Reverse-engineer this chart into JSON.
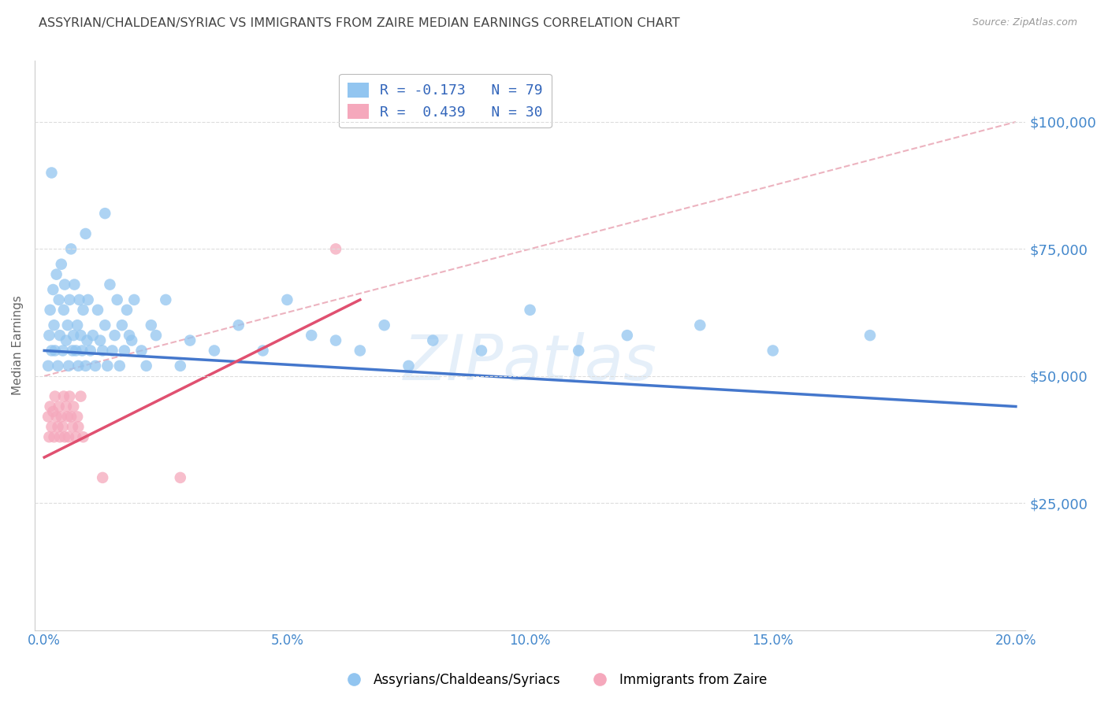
{
  "title": "ASSYRIAN/CHALDEAN/SYRIAC VS IMMIGRANTS FROM ZAIRE MEDIAN EARNINGS CORRELATION CHART",
  "source": "Source: ZipAtlas.com",
  "xlabel_pct": [
    "0.0%",
    "5.0%",
    "10.0%",
    "15.0%",
    "20.0%"
  ],
  "xlabel_vals": [
    0.0,
    0.05,
    0.1,
    0.15,
    0.2
  ],
  "ylabel": "Median Earnings",
  "ylabel_labels": [
    "$25,000",
    "$50,000",
    "$75,000",
    "$100,000"
  ],
  "ylabel_vals": [
    25000,
    50000,
    75000,
    100000
  ],
  "ylim": [
    0,
    112000
  ],
  "xlim": [
    -0.002,
    0.202
  ],
  "legend_blue_R": "R = -0.173",
  "legend_blue_N": "N = 79",
  "legend_pink_R": "R =  0.439",
  "legend_pink_N": "N = 30",
  "blue_color": "#92C5F0",
  "pink_color": "#F5A8BC",
  "line_blue": "#4477CC",
  "line_pink": "#E05070",
  "dashed_line_color": "#E8A0B0",
  "watermark": "ZIPatlas",
  "blue_scatter": [
    [
      0.0008,
      52000
    ],
    [
      0.001,
      58000
    ],
    [
      0.0012,
      63000
    ],
    [
      0.0015,
      55000
    ],
    [
      0.0018,
      67000
    ],
    [
      0.002,
      60000
    ],
    [
      0.0022,
      55000
    ],
    [
      0.0025,
      70000
    ],
    [
      0.0028,
      52000
    ],
    [
      0.003,
      65000
    ],
    [
      0.0032,
      58000
    ],
    [
      0.0035,
      72000
    ],
    [
      0.0038,
      55000
    ],
    [
      0.004,
      63000
    ],
    [
      0.0042,
      68000
    ],
    [
      0.0045,
      57000
    ],
    [
      0.0048,
      60000
    ],
    [
      0.005,
      52000
    ],
    [
      0.0052,
      65000
    ],
    [
      0.0055,
      75000
    ],
    [
      0.0058,
      55000
    ],
    [
      0.006,
      58000
    ],
    [
      0.0062,
      68000
    ],
    [
      0.0065,
      55000
    ],
    [
      0.0068,
      60000
    ],
    [
      0.007,
      52000
    ],
    [
      0.0072,
      65000
    ],
    [
      0.0075,
      58000
    ],
    [
      0.0078,
      55000
    ],
    [
      0.008,
      63000
    ],
    [
      0.0085,
      52000
    ],
    [
      0.0088,
      57000
    ],
    [
      0.009,
      65000
    ],
    [
      0.0095,
      55000
    ],
    [
      0.01,
      58000
    ],
    [
      0.0105,
      52000
    ],
    [
      0.011,
      63000
    ],
    [
      0.0115,
      57000
    ],
    [
      0.012,
      55000
    ],
    [
      0.0125,
      60000
    ],
    [
      0.013,
      52000
    ],
    [
      0.0135,
      68000
    ],
    [
      0.014,
      55000
    ],
    [
      0.0145,
      58000
    ],
    [
      0.015,
      65000
    ],
    [
      0.0155,
      52000
    ],
    [
      0.016,
      60000
    ],
    [
      0.0165,
      55000
    ],
    [
      0.017,
      63000
    ],
    [
      0.0175,
      58000
    ],
    [
      0.018,
      57000
    ],
    [
      0.0185,
      65000
    ],
    [
      0.02,
      55000
    ],
    [
      0.021,
      52000
    ],
    [
      0.022,
      60000
    ],
    [
      0.023,
      58000
    ],
    [
      0.025,
      65000
    ],
    [
      0.028,
      52000
    ],
    [
      0.03,
      57000
    ],
    [
      0.035,
      55000
    ],
    [
      0.04,
      60000
    ],
    [
      0.045,
      55000
    ],
    [
      0.05,
      65000
    ],
    [
      0.055,
      58000
    ],
    [
      0.06,
      57000
    ],
    [
      0.065,
      55000
    ],
    [
      0.07,
      60000
    ],
    [
      0.075,
      52000
    ],
    [
      0.08,
      57000
    ],
    [
      0.09,
      55000
    ],
    [
      0.1,
      63000
    ],
    [
      0.11,
      55000
    ],
    [
      0.12,
      58000
    ],
    [
      0.135,
      60000
    ],
    [
      0.15,
      55000
    ],
    [
      0.17,
      58000
    ],
    [
      0.0015,
      90000
    ],
    [
      0.0125,
      82000
    ],
    [
      0.0085,
      78000
    ]
  ],
  "pink_scatter": [
    [
      0.0008,
      42000
    ],
    [
      0.001,
      38000
    ],
    [
      0.0012,
      44000
    ],
    [
      0.0015,
      40000
    ],
    [
      0.0018,
      43000
    ],
    [
      0.002,
      38000
    ],
    [
      0.0022,
      46000
    ],
    [
      0.0025,
      42000
    ],
    [
      0.0028,
      40000
    ],
    [
      0.003,
      44000
    ],
    [
      0.0032,
      38000
    ],
    [
      0.0035,
      42000
    ],
    [
      0.0038,
      40000
    ],
    [
      0.004,
      46000
    ],
    [
      0.0042,
      38000
    ],
    [
      0.0045,
      44000
    ],
    [
      0.0048,
      42000
    ],
    [
      0.005,
      38000
    ],
    [
      0.0052,
      46000
    ],
    [
      0.0055,
      42000
    ],
    [
      0.0058,
      40000
    ],
    [
      0.006,
      44000
    ],
    [
      0.0065,
      38000
    ],
    [
      0.0068,
      42000
    ],
    [
      0.007,
      40000
    ],
    [
      0.0075,
      46000
    ],
    [
      0.008,
      38000
    ],
    [
      0.012,
      30000
    ],
    [
      0.028,
      30000
    ],
    [
      0.06,
      75000
    ]
  ],
  "blue_line_x": [
    0.0,
    0.2
  ],
  "blue_line_y": [
    55000,
    44000
  ],
  "pink_line_x": [
    0.0,
    0.065
  ],
  "pink_line_y": [
    34000,
    65000
  ],
  "dashed_line_x": [
    0.0,
    0.2
  ],
  "dashed_line_y": [
    50000,
    100000
  ],
  "grid_color": "#DDDDDD",
  "bg_color": "#FFFFFF",
  "title_color": "#444444",
  "tick_label_color": "#4488CC"
}
